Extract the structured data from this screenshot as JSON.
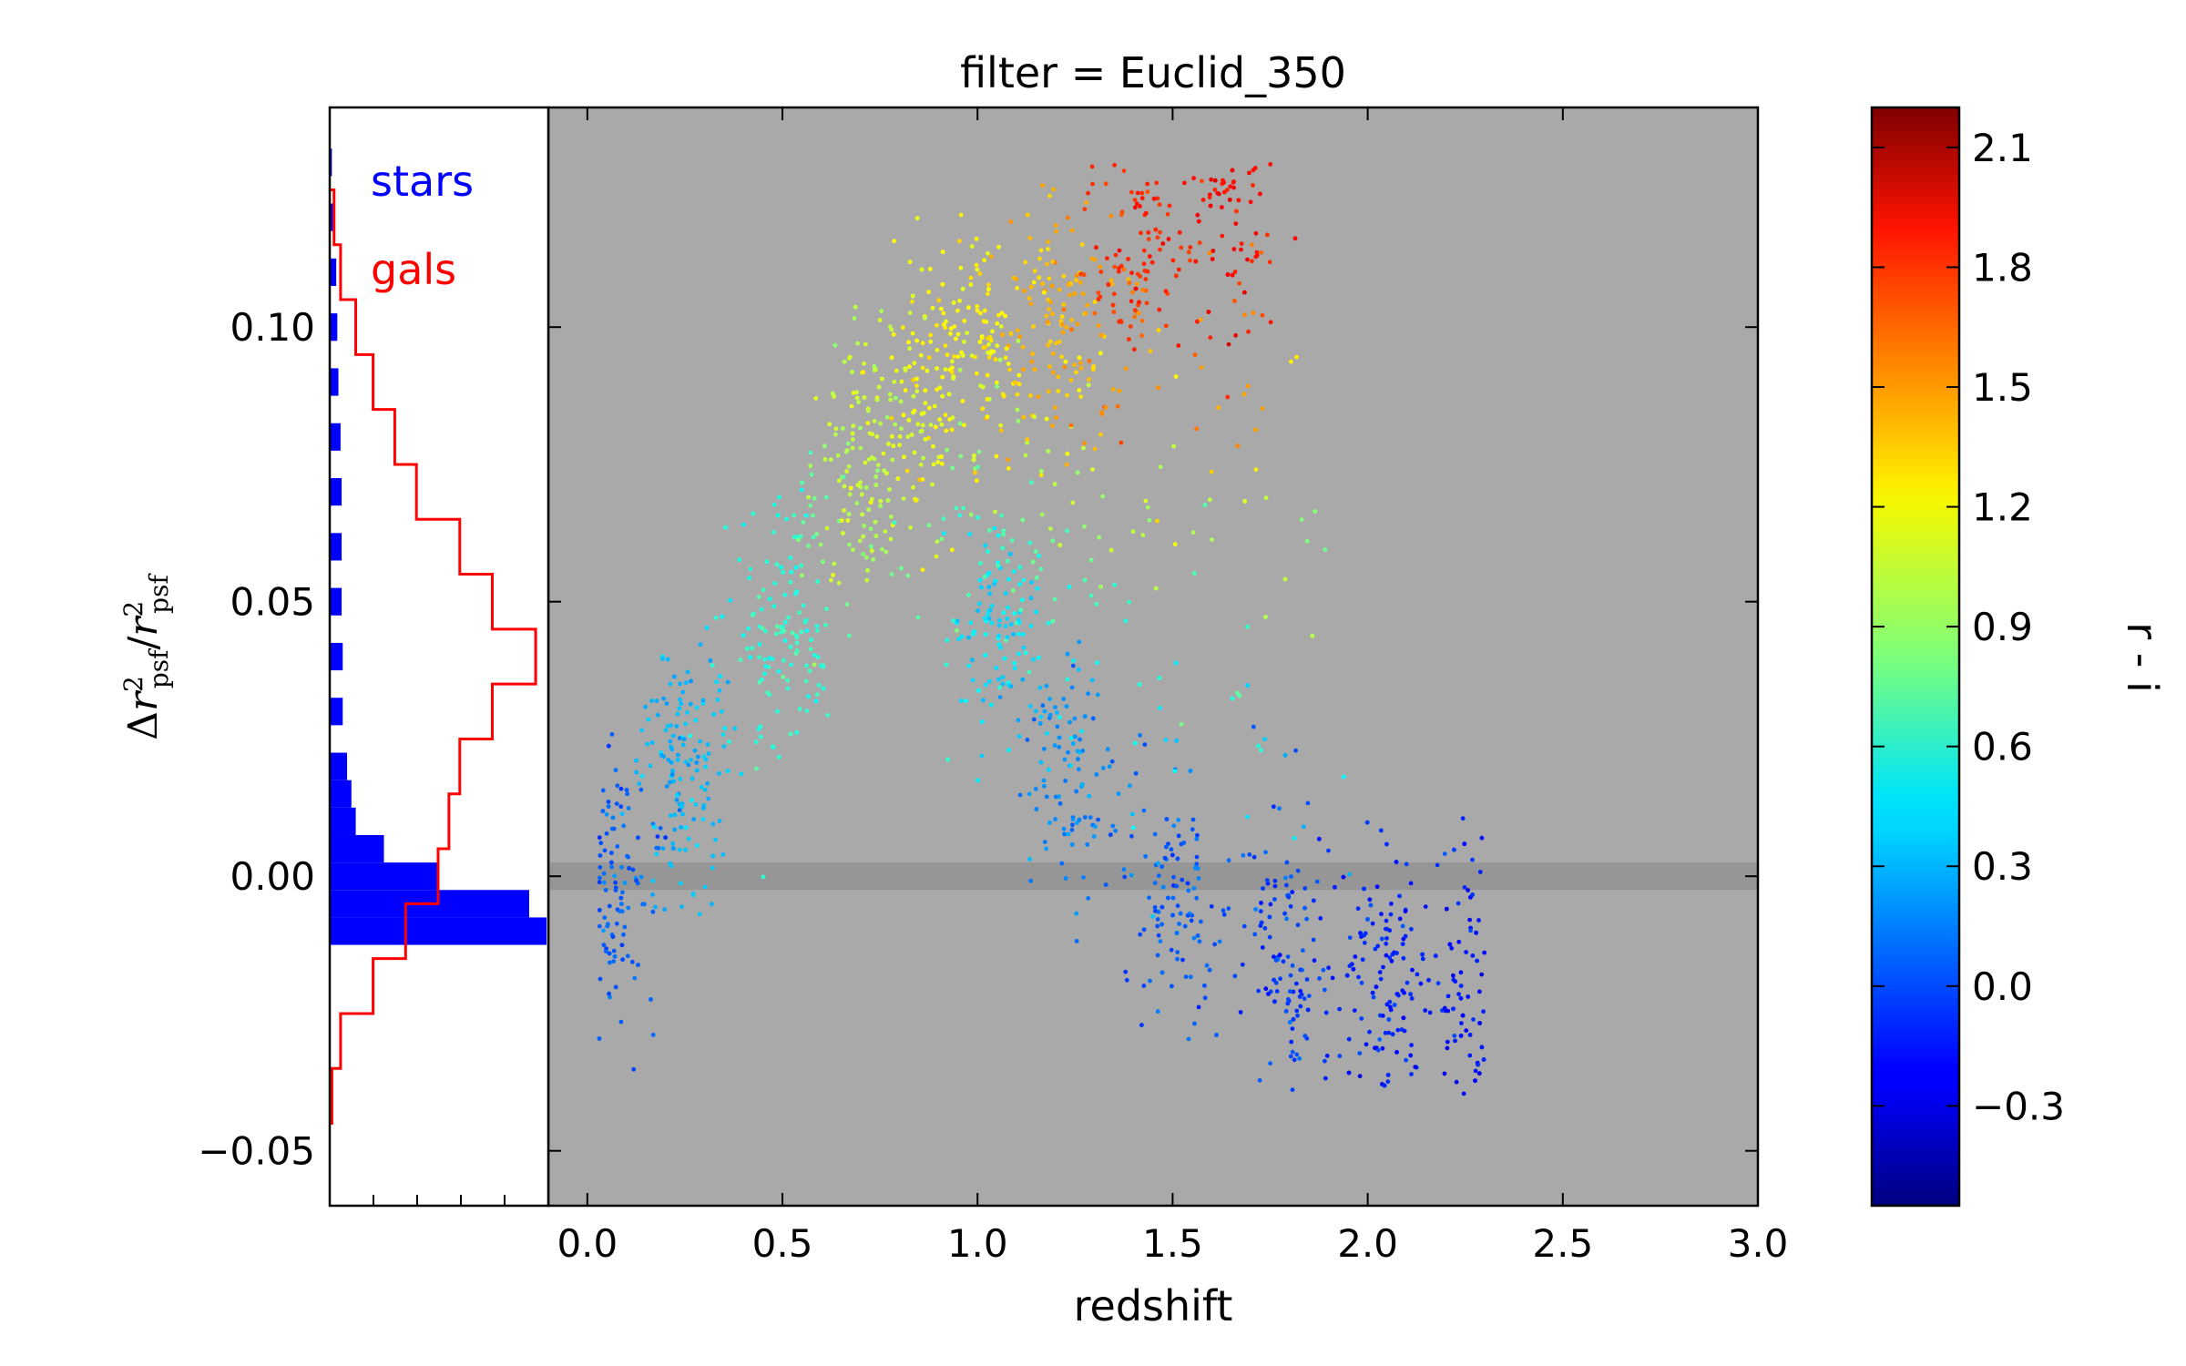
{
  "chart_data": [
    {
      "type": "scatter",
      "title": "filter = Euclid_350",
      "xlabel": "redshift",
      "ylabel": "Δr²psf/r²psf",
      "ylabel_parts": {
        "delta": "Δ",
        "r": "r",
        "psf": "psf",
        "slash": "/",
        "sq": "2"
      },
      "xlim": [
        -0.1,
        3.0
      ],
      "ylim": [
        -0.06,
        0.14
      ],
      "x_ticks": [
        "0.0",
        "0.5",
        "1.0",
        "1.5",
        "2.0",
        "2.5",
        "3.0"
      ],
      "x_tick_values": [
        0.0,
        0.5,
        1.0,
        1.5,
        2.0,
        2.5,
        3.0
      ],
      "y_ticks": [
        "−0.05",
        "0.00",
        "0.05",
        "0.10"
      ],
      "y_tick_values": [
        -0.05,
        0.0,
        0.05,
        0.1
      ],
      "background_color": "#a9a9a9",
      "reference_band": {
        "y_min": -0.0025,
        "y_max": 0.0025,
        "color": "#969696"
      },
      "color_by": "r - i",
      "points_sample_note_free": true,
      "trend_anchors": [
        {
          "x": 0.05,
          "y": -0.005,
          "c": 0.05
        },
        {
          "x": 0.25,
          "y": 0.02,
          "c": 0.3
        },
        {
          "x": 0.5,
          "y": 0.045,
          "c": 0.6
        },
        {
          "x": 0.7,
          "y": 0.075,
          "c": 1.0
        },
        {
          "x": 0.85,
          "y": 0.09,
          "c": 1.15
        },
        {
          "x": 1.0,
          "y": 0.098,
          "c": 1.2
        },
        {
          "x": 1.2,
          "y": 0.1,
          "c": 1.35
        },
        {
          "x": 1.4,
          "y": 0.115,
          "c": 1.75
        },
        {
          "x": 1.65,
          "y": 0.126,
          "c": 1.85
        },
        {
          "x": 1.05,
          "y": 0.045,
          "c": 0.4
        },
        {
          "x": 1.25,
          "y": 0.015,
          "c": 0.15
        },
        {
          "x": 1.5,
          "y": -0.005,
          "c": 0.05
        },
        {
          "x": 1.8,
          "y": -0.015,
          "c": -0.05
        },
        {
          "x": 2.05,
          "y": -0.02,
          "c": -0.1
        },
        {
          "x": 2.28,
          "y": -0.02,
          "c": -0.15
        }
      ]
    },
    {
      "type": "histogram",
      "orientation": "horizontal",
      "legend": [
        {
          "name": "stars",
          "color": "#0000ff"
        },
        {
          "name": "gals",
          "color": "#ff0000"
        }
      ],
      "ylim": [
        -0.06,
        0.14
      ],
      "series": [
        {
          "name": "stars",
          "style": "filled",
          "color": "#0000ff",
          "bins_y": [
            -0.01,
            -0.005,
            0.0,
            0.005,
            0.01,
            0.015,
            0.02,
            0.03,
            0.04,
            0.05,
            0.06,
            0.07,
            0.08,
            0.09,
            0.1,
            0.11,
            0.12,
            0.13
          ],
          "relative_counts": [
            1.0,
            0.92,
            0.5,
            0.25,
            0.12,
            0.1,
            0.08,
            0.06,
            0.06,
            0.055,
            0.055,
            0.055,
            0.05,
            0.04,
            0.035,
            0.03,
            0.02,
            0.01
          ]
        },
        {
          "name": "gals",
          "style": "step",
          "color": "#ff0000",
          "bins_y": [
            -0.04,
            -0.03,
            -0.02,
            -0.01,
            0.0,
            0.01,
            0.02,
            0.03,
            0.04,
            0.05,
            0.06,
            0.07,
            0.08,
            0.09,
            0.1,
            0.11,
            0.12
          ],
          "relative_counts": [
            0.01,
            0.05,
            0.2,
            0.35,
            0.5,
            0.55,
            0.6,
            0.75,
            0.95,
            0.75,
            0.6,
            0.4,
            0.3,
            0.2,
            0.12,
            0.05,
            0.02
          ]
        }
      ]
    },
    {
      "type": "colorbar",
      "label": "r - i",
      "range": [
        -0.55,
        2.2
      ],
      "ticks": [
        "2.1",
        "1.8",
        "1.5",
        "1.2",
        "0.9",
        "0.6",
        "0.3",
        "0.0",
        "−0.3"
      ],
      "tick_values": [
        2.1,
        1.8,
        1.5,
        1.2,
        0.9,
        0.6,
        0.3,
        0.0,
        -0.3
      ],
      "colormap": "jet"
    }
  ]
}
